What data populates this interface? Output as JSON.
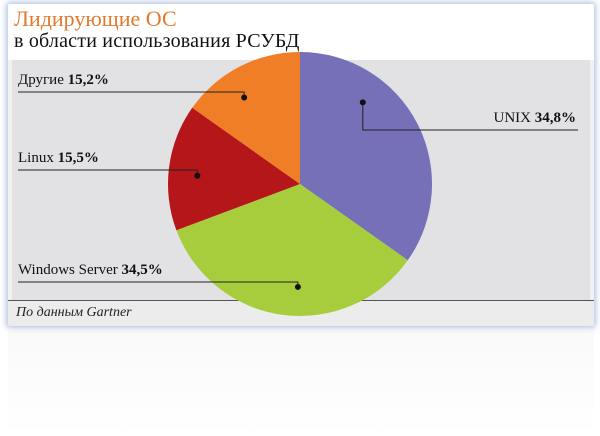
{
  "header": {
    "title": "Лидирующие ОС",
    "subtitle": "в области использования РСУБД"
  },
  "source": "По данным Gartner",
  "colors": {
    "title": "#e27a2e",
    "unix": "#7570b8",
    "windows": "#a8cd3c",
    "linux": "#b41619",
    "other": "#f07e26"
  },
  "chart_data": {
    "type": "pie",
    "title": "Лидирующие ОС в области использования РСУБД",
    "unit": "%",
    "slices": [
      {
        "label": "UNIX",
        "value": 34.8,
        "value_text": "34,8%",
        "color": "#7570b8"
      },
      {
        "label": "Windows Server",
        "value": 34.5,
        "value_text": "34,5%",
        "color": "#a8cd3c"
      },
      {
        "label": "Linux",
        "value": 15.5,
        "value_text": "15,5%",
        "color": "#b41619"
      },
      {
        "label": "Другие",
        "value": 15.2,
        "value_text": "15,2%",
        "color": "#f07e26"
      }
    ],
    "start_angle_deg": 0,
    "direction": "clockwise",
    "legend": "none"
  }
}
